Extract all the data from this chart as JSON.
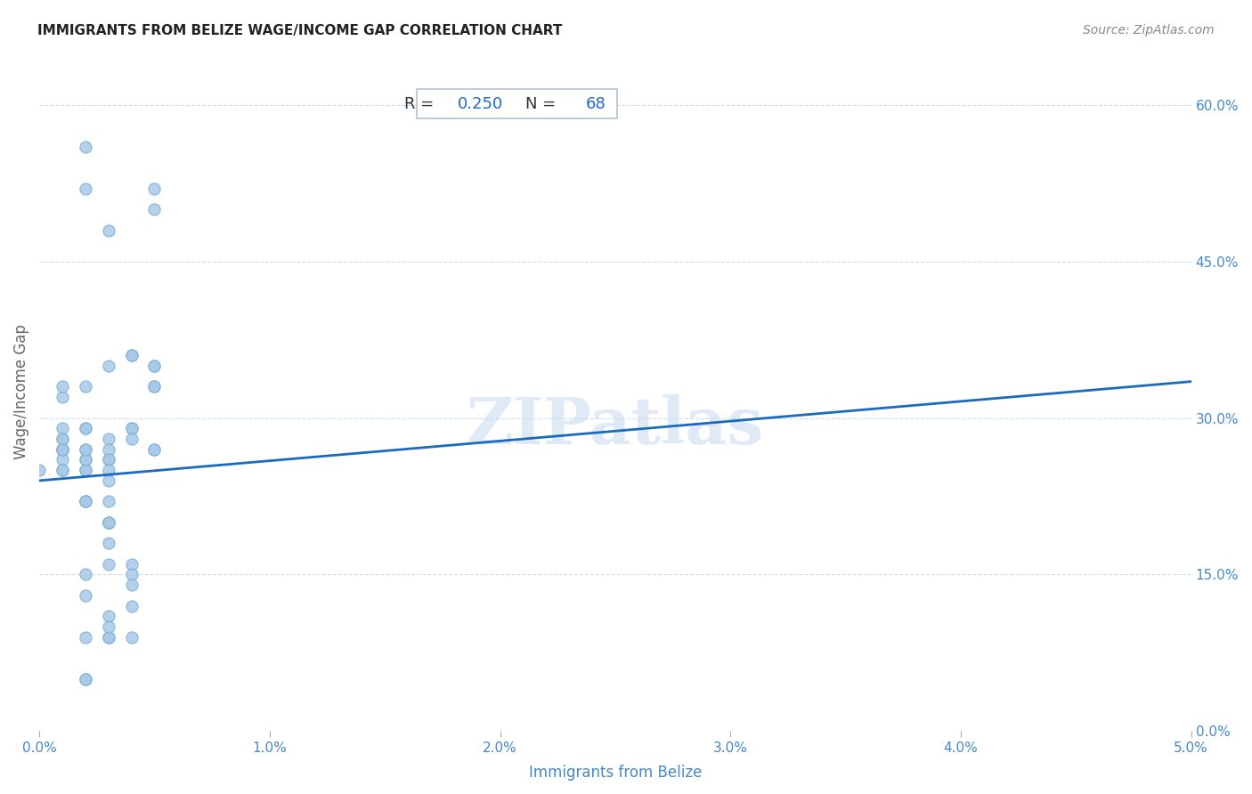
{
  "title": "IMMIGRANTS FROM BELIZE WAGE/INCOME GAP CORRELATION CHART",
  "source": "Source: ZipAtlas.com",
  "xlabel": "Immigrants from Belize",
  "ylabel": "Wage/Income Gap",
  "xlim": [
    0.0,
    0.05
  ],
  "ylim": [
    0.0,
    0.65
  ],
  "xticks": [
    0.0,
    0.01,
    0.02,
    0.03,
    0.04,
    0.05
  ],
  "xtick_labels": [
    "0.0%",
    "1.0%",
    "2.0%",
    "3.0%",
    "4.0%",
    "5.0%"
  ],
  "ytick_labels": [
    "0.0%",
    "15.0%",
    "30.0%",
    "45.0%",
    "60.0%"
  ],
  "yticks": [
    0.0,
    0.15,
    0.3,
    0.45,
    0.6
  ],
  "R": 0.25,
  "N": 68,
  "scatter_color": "#a8c8e8",
  "scatter_edge_color": "#7aafd4",
  "line_color": "#1a6bbf",
  "title_color": "#222222",
  "source_color": "#888888",
  "label_color": "#4488cc",
  "ylabel_color": "#666666",
  "points_x": [
    0.0,
    0.001,
    0.001,
    0.001,
    0.001,
    0.001,
    0.001,
    0.001,
    0.001,
    0.001,
    0.001,
    0.001,
    0.001,
    0.002,
    0.002,
    0.002,
    0.002,
    0.002,
    0.002,
    0.002,
    0.002,
    0.002,
    0.002,
    0.002,
    0.002,
    0.002,
    0.002,
    0.002,
    0.002,
    0.002,
    0.002,
    0.002,
    0.003,
    0.003,
    0.003,
    0.003,
    0.003,
    0.003,
    0.003,
    0.003,
    0.003,
    0.003,
    0.003,
    0.003,
    0.003,
    0.003,
    0.003,
    0.003,
    0.003,
    0.003,
    0.004,
    0.004,
    0.004,
    0.004,
    0.004,
    0.004,
    0.004,
    0.004,
    0.004,
    0.004,
    0.005,
    0.005,
    0.005,
    0.005,
    0.005,
    0.005,
    0.005,
    0.005
  ],
  "points_y": [
    0.25,
    0.26,
    0.25,
    0.27,
    0.27,
    0.28,
    0.25,
    0.27,
    0.29,
    0.28,
    0.27,
    0.32,
    0.33,
    0.27,
    0.26,
    0.25,
    0.22,
    0.25,
    0.22,
    0.26,
    0.33,
    0.29,
    0.29,
    0.27,
    0.15,
    0.13,
    0.09,
    0.05,
    0.05,
    0.22,
    0.56,
    0.52,
    0.26,
    0.35,
    0.28,
    0.27,
    0.26,
    0.25,
    0.24,
    0.22,
    0.2,
    0.2,
    0.2,
    0.18,
    0.11,
    0.09,
    0.09,
    0.16,
    0.1,
    0.48,
    0.36,
    0.36,
    0.29,
    0.29,
    0.16,
    0.12,
    0.09,
    0.28,
    0.15,
    0.14,
    0.27,
    0.27,
    0.35,
    0.35,
    0.5,
    0.52,
    0.33,
    0.33
  ],
  "line_x": [
    0.0,
    0.05
  ],
  "line_y": [
    0.24,
    0.335
  ],
  "watermark_text": "ZIPatlas",
  "background_color": "#ffffff",
  "grid_color": "#ccddee",
  "box_text_color": "#333333",
  "box_value_color": "#2266cc",
  "box_edge_color": "#b0c4d8"
}
